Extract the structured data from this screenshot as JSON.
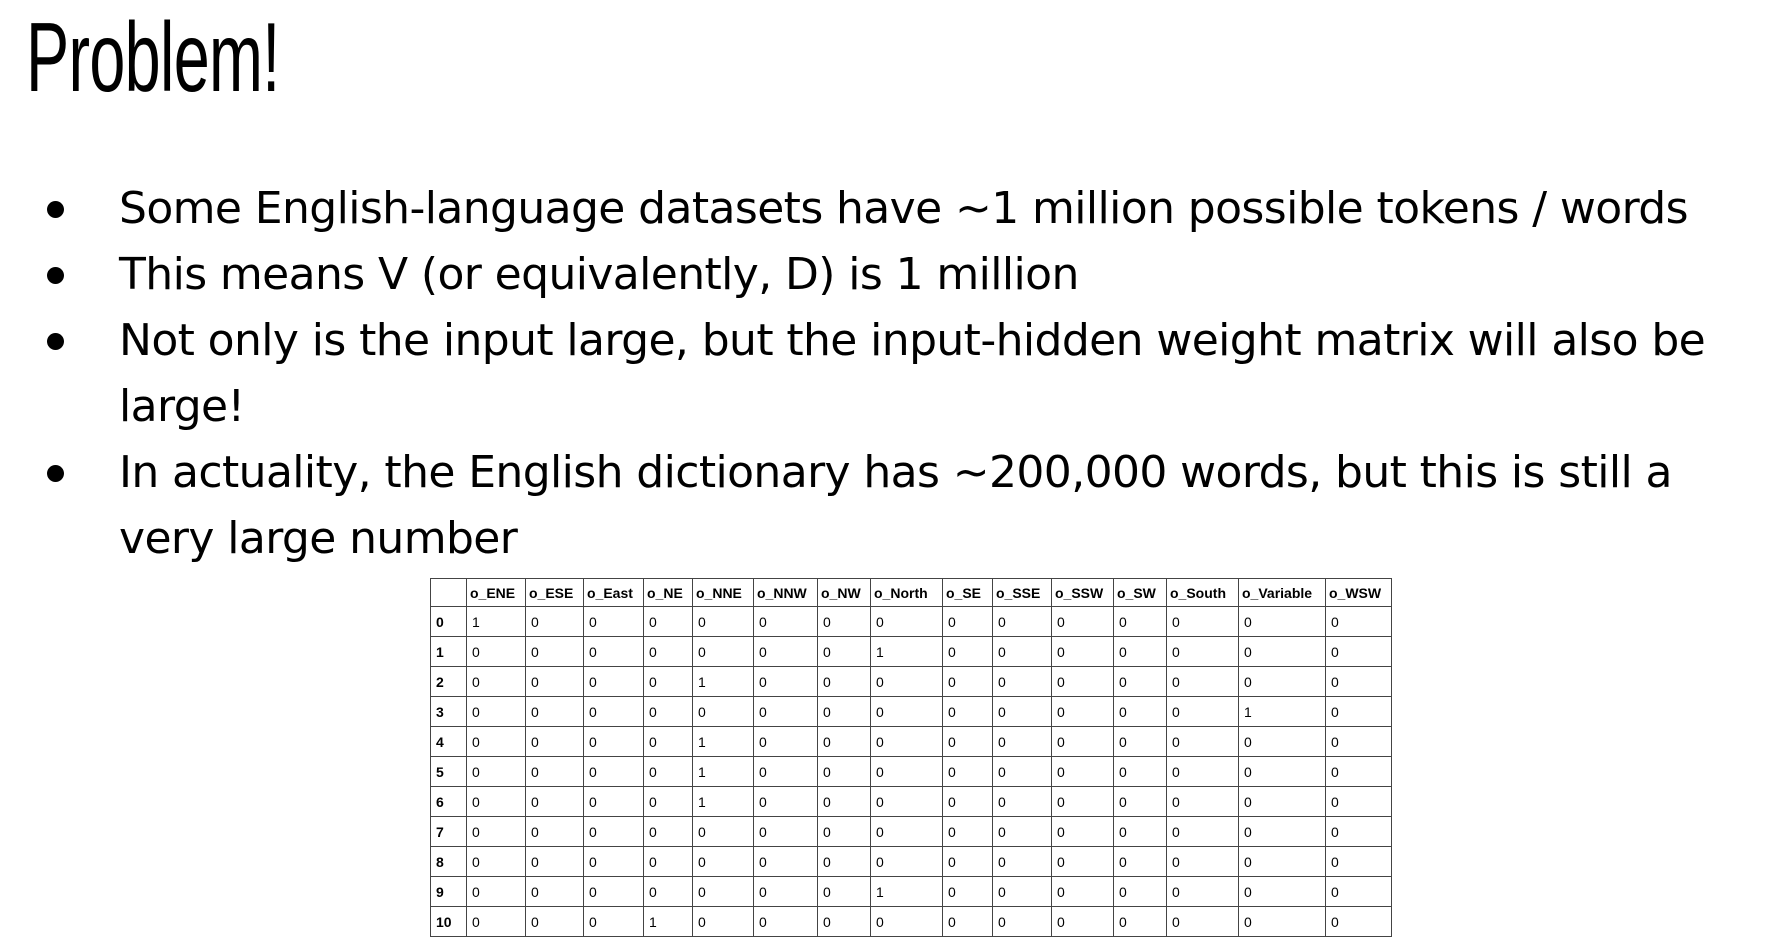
{
  "title": "Problem!",
  "bullets": [
    "Some English-language datasets have ~1 million possible tokens / words",
    "This means V (or equivalently, D) is 1 million",
    "Not only is the input large, but the input-hidden weight matrix will also be large!",
    "In actuality, the English dictionary has ~200,000 words, but this is still a very large number"
  ],
  "table": {
    "columns": [
      "",
      "o_ENE",
      "o_ESE",
      "o_East",
      "o_NE",
      "o_NNE",
      "o_NNW",
      "o_NW",
      "o_North",
      "o_SE",
      "o_SSE",
      "o_SSW",
      "o_SW",
      "o_South",
      "o_Variable",
      "o_WSW"
    ],
    "rows": [
      {
        "index": "0",
        "values": [
          "1",
          "0",
          "0",
          "0",
          "0",
          "0",
          "0",
          "0",
          "0",
          "0",
          "0",
          "0",
          "0",
          "0",
          "0"
        ]
      },
      {
        "index": "1",
        "values": [
          "0",
          "0",
          "0",
          "0",
          "0",
          "0",
          "0",
          "1",
          "0",
          "0",
          "0",
          "0",
          "0",
          "0",
          "0"
        ]
      },
      {
        "index": "2",
        "values": [
          "0",
          "0",
          "0",
          "0",
          "1",
          "0",
          "0",
          "0",
          "0",
          "0",
          "0",
          "0",
          "0",
          "0",
          "0"
        ]
      },
      {
        "index": "3",
        "values": [
          "0",
          "0",
          "0",
          "0",
          "0",
          "0",
          "0",
          "0",
          "0",
          "0",
          "0",
          "0",
          "0",
          "1",
          "0"
        ]
      },
      {
        "index": "4",
        "values": [
          "0",
          "0",
          "0",
          "0",
          "1",
          "0",
          "0",
          "0",
          "0",
          "0",
          "0",
          "0",
          "0",
          "0",
          "0"
        ]
      },
      {
        "index": "5",
        "values": [
          "0",
          "0",
          "0",
          "0",
          "1",
          "0",
          "0",
          "0",
          "0",
          "0",
          "0",
          "0",
          "0",
          "0",
          "0"
        ]
      },
      {
        "index": "6",
        "values": [
          "0",
          "0",
          "0",
          "0",
          "1",
          "0",
          "0",
          "0",
          "0",
          "0",
          "0",
          "0",
          "0",
          "0",
          "0"
        ]
      },
      {
        "index": "7",
        "values": [
          "0",
          "0",
          "0",
          "0",
          "0",
          "0",
          "0",
          "0",
          "0",
          "0",
          "0",
          "0",
          "0",
          "0",
          "0"
        ]
      },
      {
        "index": "8",
        "values": [
          "0",
          "0",
          "0",
          "0",
          "0",
          "0",
          "0",
          "0",
          "0",
          "0",
          "0",
          "0",
          "0",
          "0",
          "0"
        ]
      },
      {
        "index": "9",
        "values": [
          "0",
          "0",
          "0",
          "0",
          "0",
          "0",
          "0",
          "1",
          "0",
          "0",
          "0",
          "0",
          "0",
          "0",
          "0"
        ]
      },
      {
        "index": "10",
        "values": [
          "0",
          "0",
          "0",
          "1",
          "0",
          "0",
          "0",
          "0",
          "0",
          "0",
          "0",
          "0",
          "0",
          "0",
          "0"
        ]
      }
    ]
  }
}
